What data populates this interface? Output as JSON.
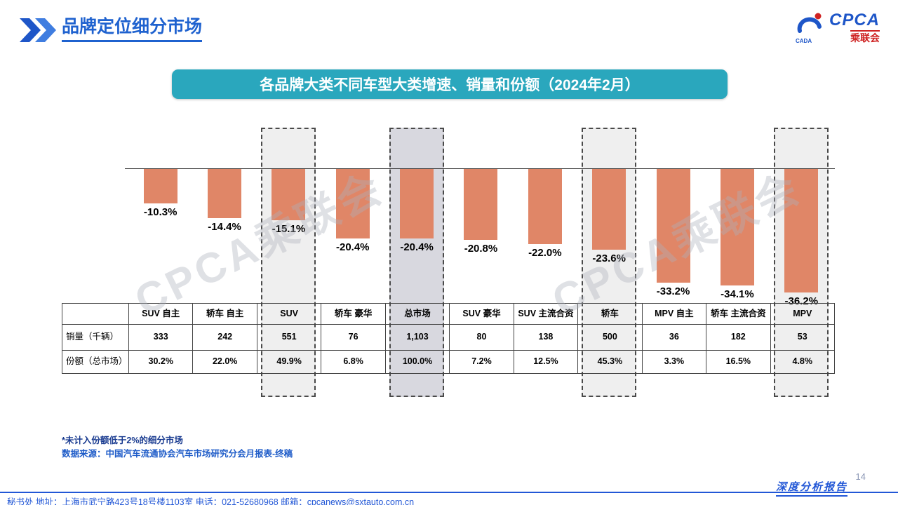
{
  "page": {
    "title": "品牌定位细分市场",
    "banner": "各品牌大类不同车型大类增速、销量和份额（2024年2月）",
    "page_number": "14",
    "watermark": "CPCA乘联会",
    "report_label": "深度分析报告"
  },
  "logo": {
    "cpca": "CPCA",
    "cn": "乘联会",
    "cada": "CADA"
  },
  "notes": [
    "*未计入份额低于2%的细分市场",
    "数据来源：中国汽车流通协会汽车市场研究分会月报表-终稿"
  ],
  "footer": "秘书处   地址：上海市武宁路423号18号楼1103室   电话：021-52680968    邮箱：cpcanews@sxtauto.com.cn",
  "chart_data": {
    "type": "bar",
    "title": "各品牌大类不同车型大类增速、销量和份额（2024年2月）",
    "categories": [
      "SUV 自主",
      "轿车 自主",
      "SUV",
      "轿车 豪华",
      "总市场",
      "SUV 豪华",
      "SUV 主流合资",
      "轿车",
      "MPV 自主",
      "轿车 主流合资",
      "MPV"
    ],
    "values": [
      -10.3,
      -14.4,
      -15.1,
      -20.4,
      -20.4,
      -20.8,
      -22.0,
      -23.6,
      -33.2,
      -34.1,
      -36.2
    ],
    "labels": [
      "-10.3%",
      "-14.4%",
      "-15.1%",
      "-20.4%",
      "-20.4%",
      "-20.8%",
      "-22.0%",
      "-23.6%",
      "-33.2%",
      "-34.1%",
      "-36.2%"
    ],
    "highlighted": [
      "SUV",
      "总市场",
      "轿车",
      "MPV"
    ],
    "bar_color": "#E08667",
    "ylim": [
      -40,
      0
    ],
    "grid": false,
    "legend": "none",
    "table": {
      "row_headers": [
        "销量（千辆）",
        "份额（总市场）"
      ],
      "rows": [
        [
          "333",
          "242",
          "551",
          "76",
          "1,103",
          "80",
          "138",
          "500",
          "36",
          "182",
          "53"
        ],
        [
          "30.2%",
          "22.0%",
          "49.9%",
          "6.8%",
          "100.0%",
          "7.2%",
          "12.5%",
          "45.3%",
          "3.3%",
          "16.5%",
          "4.8%"
        ]
      ]
    }
  }
}
